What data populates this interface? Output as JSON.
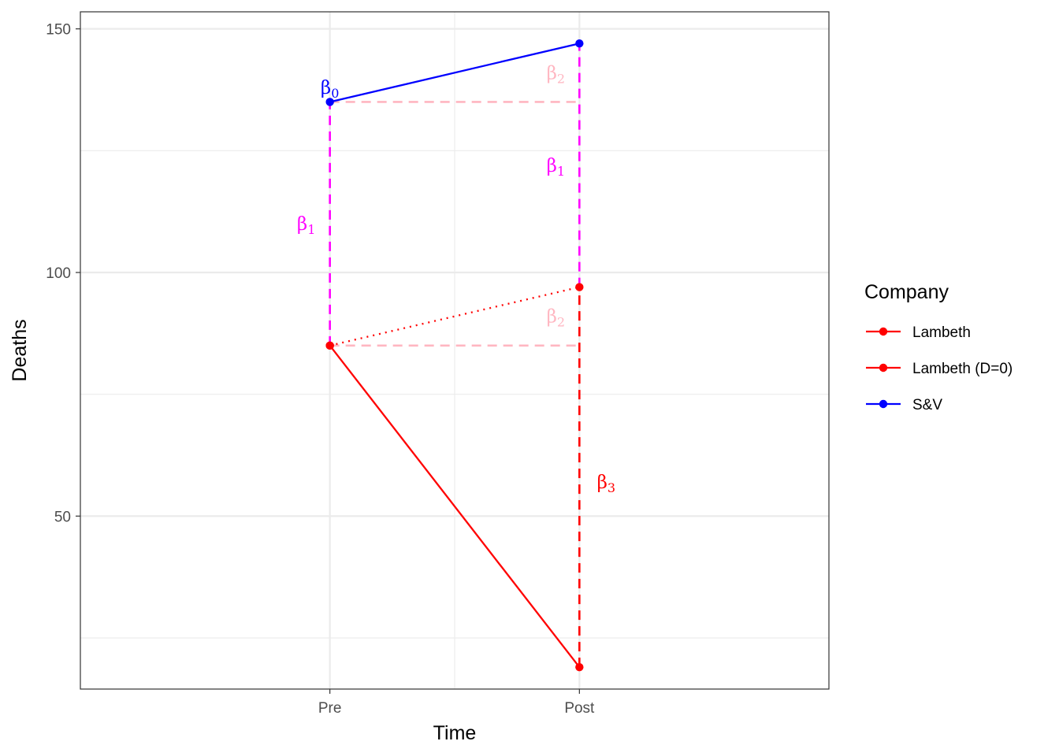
{
  "chart_data": {
    "type": "line",
    "xlabel": "Time",
    "ylabel": "Deaths",
    "categories": [
      "Pre",
      "Post"
    ],
    "ylim": [
      14.5,
      153.5
    ],
    "yticks": [
      50,
      100,
      150
    ],
    "grid": true,
    "legend": {
      "title": "Company",
      "placement": "right"
    },
    "series": [
      {
        "name": "Lambeth",
        "color": "#ff0000",
        "linestyle": "solid",
        "values": [
          85,
          19
        ]
      },
      {
        "name": "Lambeth (D=0)",
        "color": "#ff0000",
        "linestyle": "dotted",
        "values": [
          85,
          97
        ]
      },
      {
        "name": "S&V",
        "color": "#0000ff",
        "linestyle": "solid",
        "values": [
          135,
          147
        ]
      }
    ],
    "annotations": [
      {
        "text": "β",
        "sub": "0",
        "color": "#0000ff",
        "x": "Pre",
        "y": 138
      },
      {
        "text": "β",
        "sub": "1",
        "color": "#ff00ff",
        "x": "Pre",
        "y": 110
      },
      {
        "text": "β",
        "sub": "1",
        "color": "#ff00ff",
        "x": "Post",
        "y": 122
      },
      {
        "text": "β",
        "sub": "2",
        "color": "#ffb6c1",
        "x": "Post",
        "y": 141
      },
      {
        "text": "β",
        "sub": "2",
        "color": "#ffb6c1",
        "x": "Post",
        "y": 91
      },
      {
        "text": "β",
        "sub": "3",
        "color": "#ff0000",
        "x": "Post",
        "y": 57
      }
    ],
    "reference_lines": [
      {
        "kind": "horizontal",
        "y": 135,
        "from": "Pre",
        "to": "Post",
        "color": "#ffb6c1",
        "linestyle": "dashed"
      },
      {
        "kind": "horizontal",
        "y": 85,
        "from": "Pre",
        "to": "Post",
        "color": "#ffb6c1",
        "linestyle": "dashed"
      },
      {
        "kind": "vertical",
        "x": "Pre",
        "y_from": 85,
        "y_to": 135,
        "color": "#ff00ff",
        "linestyle": "dashed"
      },
      {
        "kind": "vertical",
        "x": "Post",
        "y_from": 97,
        "y_to": 147,
        "color": "#ff00ff",
        "linestyle": "dashed"
      },
      {
        "kind": "vertical",
        "x": "Post",
        "y_from": 19,
        "y_to": 97,
        "color": "#ff0000",
        "linestyle": "dashed"
      }
    ]
  }
}
